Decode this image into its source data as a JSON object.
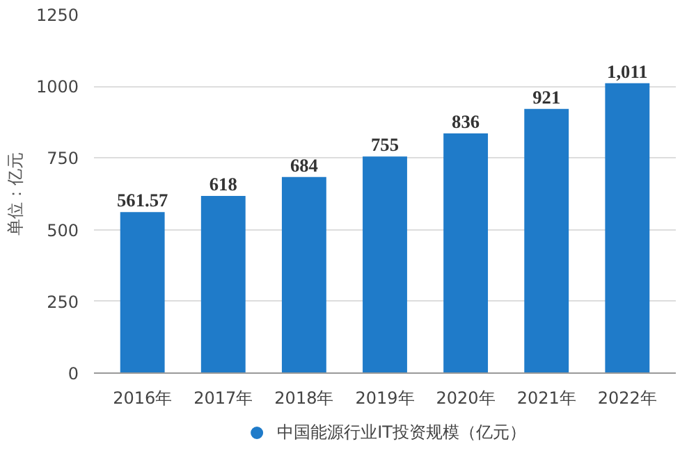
{
  "chart_data": {
    "type": "bar",
    "ylabel": "单位：亿元",
    "categories": [
      "2016年",
      "2017年",
      "2018年",
      "2019年",
      "2020年",
      "2021年",
      "2022年"
    ],
    "series": [
      {
        "name": "中国能源行业IT投资规模（亿元）",
        "color": "#1f7bc9",
        "values": [
          561.57,
          618,
          684,
          755,
          836,
          921,
          1011
        ],
        "value_labels": [
          "561.57",
          "618",
          "684",
          "755",
          "836",
          "921",
          "1,011"
        ]
      }
    ],
    "ylim": [
      0,
      1250
    ],
    "yticks": [
      0,
      250,
      500,
      750,
      1000,
      1250
    ],
    "grid": "y",
    "legend": "bottom"
  }
}
